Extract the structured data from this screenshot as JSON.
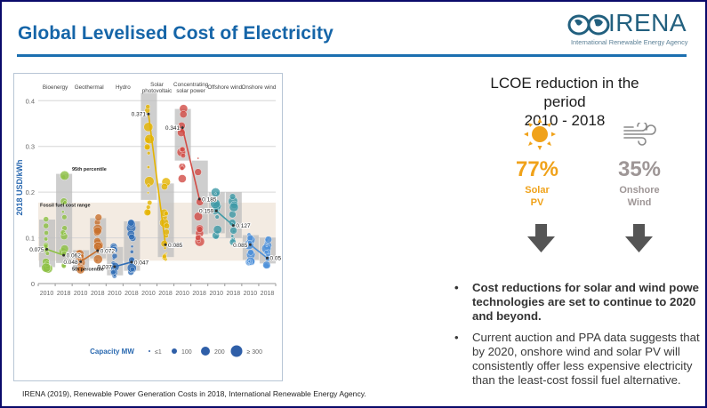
{
  "page": {
    "title": "Global Levelised Cost of Electricity",
    "logo": {
      "name": "IRENA",
      "subtitle": "International Renewable Energy Agency"
    },
    "right_panel": {
      "heading_line1": "LCOE reduction in the period",
      "heading_line2": "2010 - 2018",
      "stats": [
        {
          "value": "77%",
          "label_line1": "Solar",
          "label_line2": "PV",
          "color": "#f0a21a",
          "icon": "sun-icon"
        },
        {
          "value": "35%",
          "label_line1": "Onshore",
          "label_line2": "Wind",
          "color": "#9e9696",
          "icon": "wind-icon"
        }
      ],
      "arrow_color": "#555555"
    },
    "bullets": [
      {
        "lines": [
          "Cost reductions for solar and wind powe",
          "technologies are set to continue to 2020",
          "and beyond."
        ],
        "bold": true
      },
      {
        "lines": [
          "Current auction and PPA data suggests that",
          "by 2020, onshore wind and solar PV will",
          "consistently offer less expensive electricity",
          "than the least-cost fossil fuel alternative."
        ],
        "bold": false
      }
    ],
    "footnote": "IRENA (2019), Renewable Power Generation Costs in 2018, International Renewable Energy Agency."
  },
  "chart_data": {
    "type": "scatter",
    "title": "",
    "ylabel": "2018 USD/kWh",
    "xlabel": "",
    "ylim": [
      0,
      0.42
    ],
    "yticks": [
      0,
      0.1,
      0.2,
      0.3,
      0.4
    ],
    "ytick_labels": [
      "0",
      "0.1",
      "0.2",
      "0.3",
      "0.4"
    ],
    "grid": true,
    "fossil_fuel_range": {
      "label": "Fossil fuel cost range",
      "min": 0.05,
      "max": 0.177
    },
    "annotations": {
      "p95": "95th percentile",
      "p5": "5th percentile"
    },
    "legend": {
      "title": "Capacity MW",
      "entries": [
        "≤1",
        "100",
        "200",
        "≥ 300"
      ],
      "placement": "bottom"
    },
    "technologies": [
      {
        "name": "Bioenergy",
        "color": "#8dc043",
        "years": [
          {
            "year": "2010",
            "weighted_avg": 0.075,
            "p5": 0.036,
            "p95": 0.14
          },
          {
            "year": "2018",
            "weighted_avg": 0.062,
            "p5": 0.045,
            "p95": 0.24
          }
        ]
      },
      {
        "name": "Geothermal",
        "color": "#c8702d",
        "years": [
          {
            "year": "2010",
            "weighted_avg": 0.048,
            "p5": 0.035,
            "p95": 0.073
          },
          {
            "year": "2018",
            "weighted_avg": 0.072,
            "p5": 0.055,
            "p95": 0.143
          }
        ]
      },
      {
        "name": "Hydro",
        "color": "#2f6db5",
        "years": [
          {
            "year": "2010",
            "weighted_avg": 0.037,
            "p5": 0.018,
            "p95": 0.08
          },
          {
            "year": "2018",
            "weighted_avg": 0.047,
            "p5": 0.028,
            "p95": 0.136
          }
        ]
      },
      {
        "name": "Solar photovoltaic",
        "color": "#e5b400",
        "years": [
          {
            "year": "2010",
            "weighted_avg": 0.371,
            "p5": 0.183,
            "p95": 0.417
          },
          {
            "year": "2018",
            "weighted_avg": 0.085,
            "p5": 0.058,
            "p95": 0.219
          }
        ]
      },
      {
        "name": "Concentrating solar power",
        "color": "#d24c46",
        "years": [
          {
            "year": "2010",
            "weighted_avg": 0.341,
            "p5": 0.269,
            "p95": 0.382
          },
          {
            "year": "2018",
            "weighted_avg": 0.185,
            "p5": 0.108,
            "p95": 0.269
          }
        ]
      },
      {
        "name": "Offshore wind",
        "color": "#3f9aa6",
        "years": [
          {
            "year": "2010",
            "weighted_avg": 0.159,
            "p5": 0.11,
            "p95": 0.2
          },
          {
            "year": "2018",
            "weighted_avg": 0.127,
            "p5": 0.1,
            "p95": 0.2
          }
        ]
      },
      {
        "name": "Onshore wind",
        "color": "#4b8fd8",
        "years": [
          {
            "year": "2010",
            "weighted_avg": 0.085,
            "p5": 0.052,
            "p95": 0.106
          },
          {
            "year": "2018",
            "weighted_avg": 0.056,
            "p5": 0.044,
            "p95": 0.1
          }
        ]
      }
    ]
  }
}
